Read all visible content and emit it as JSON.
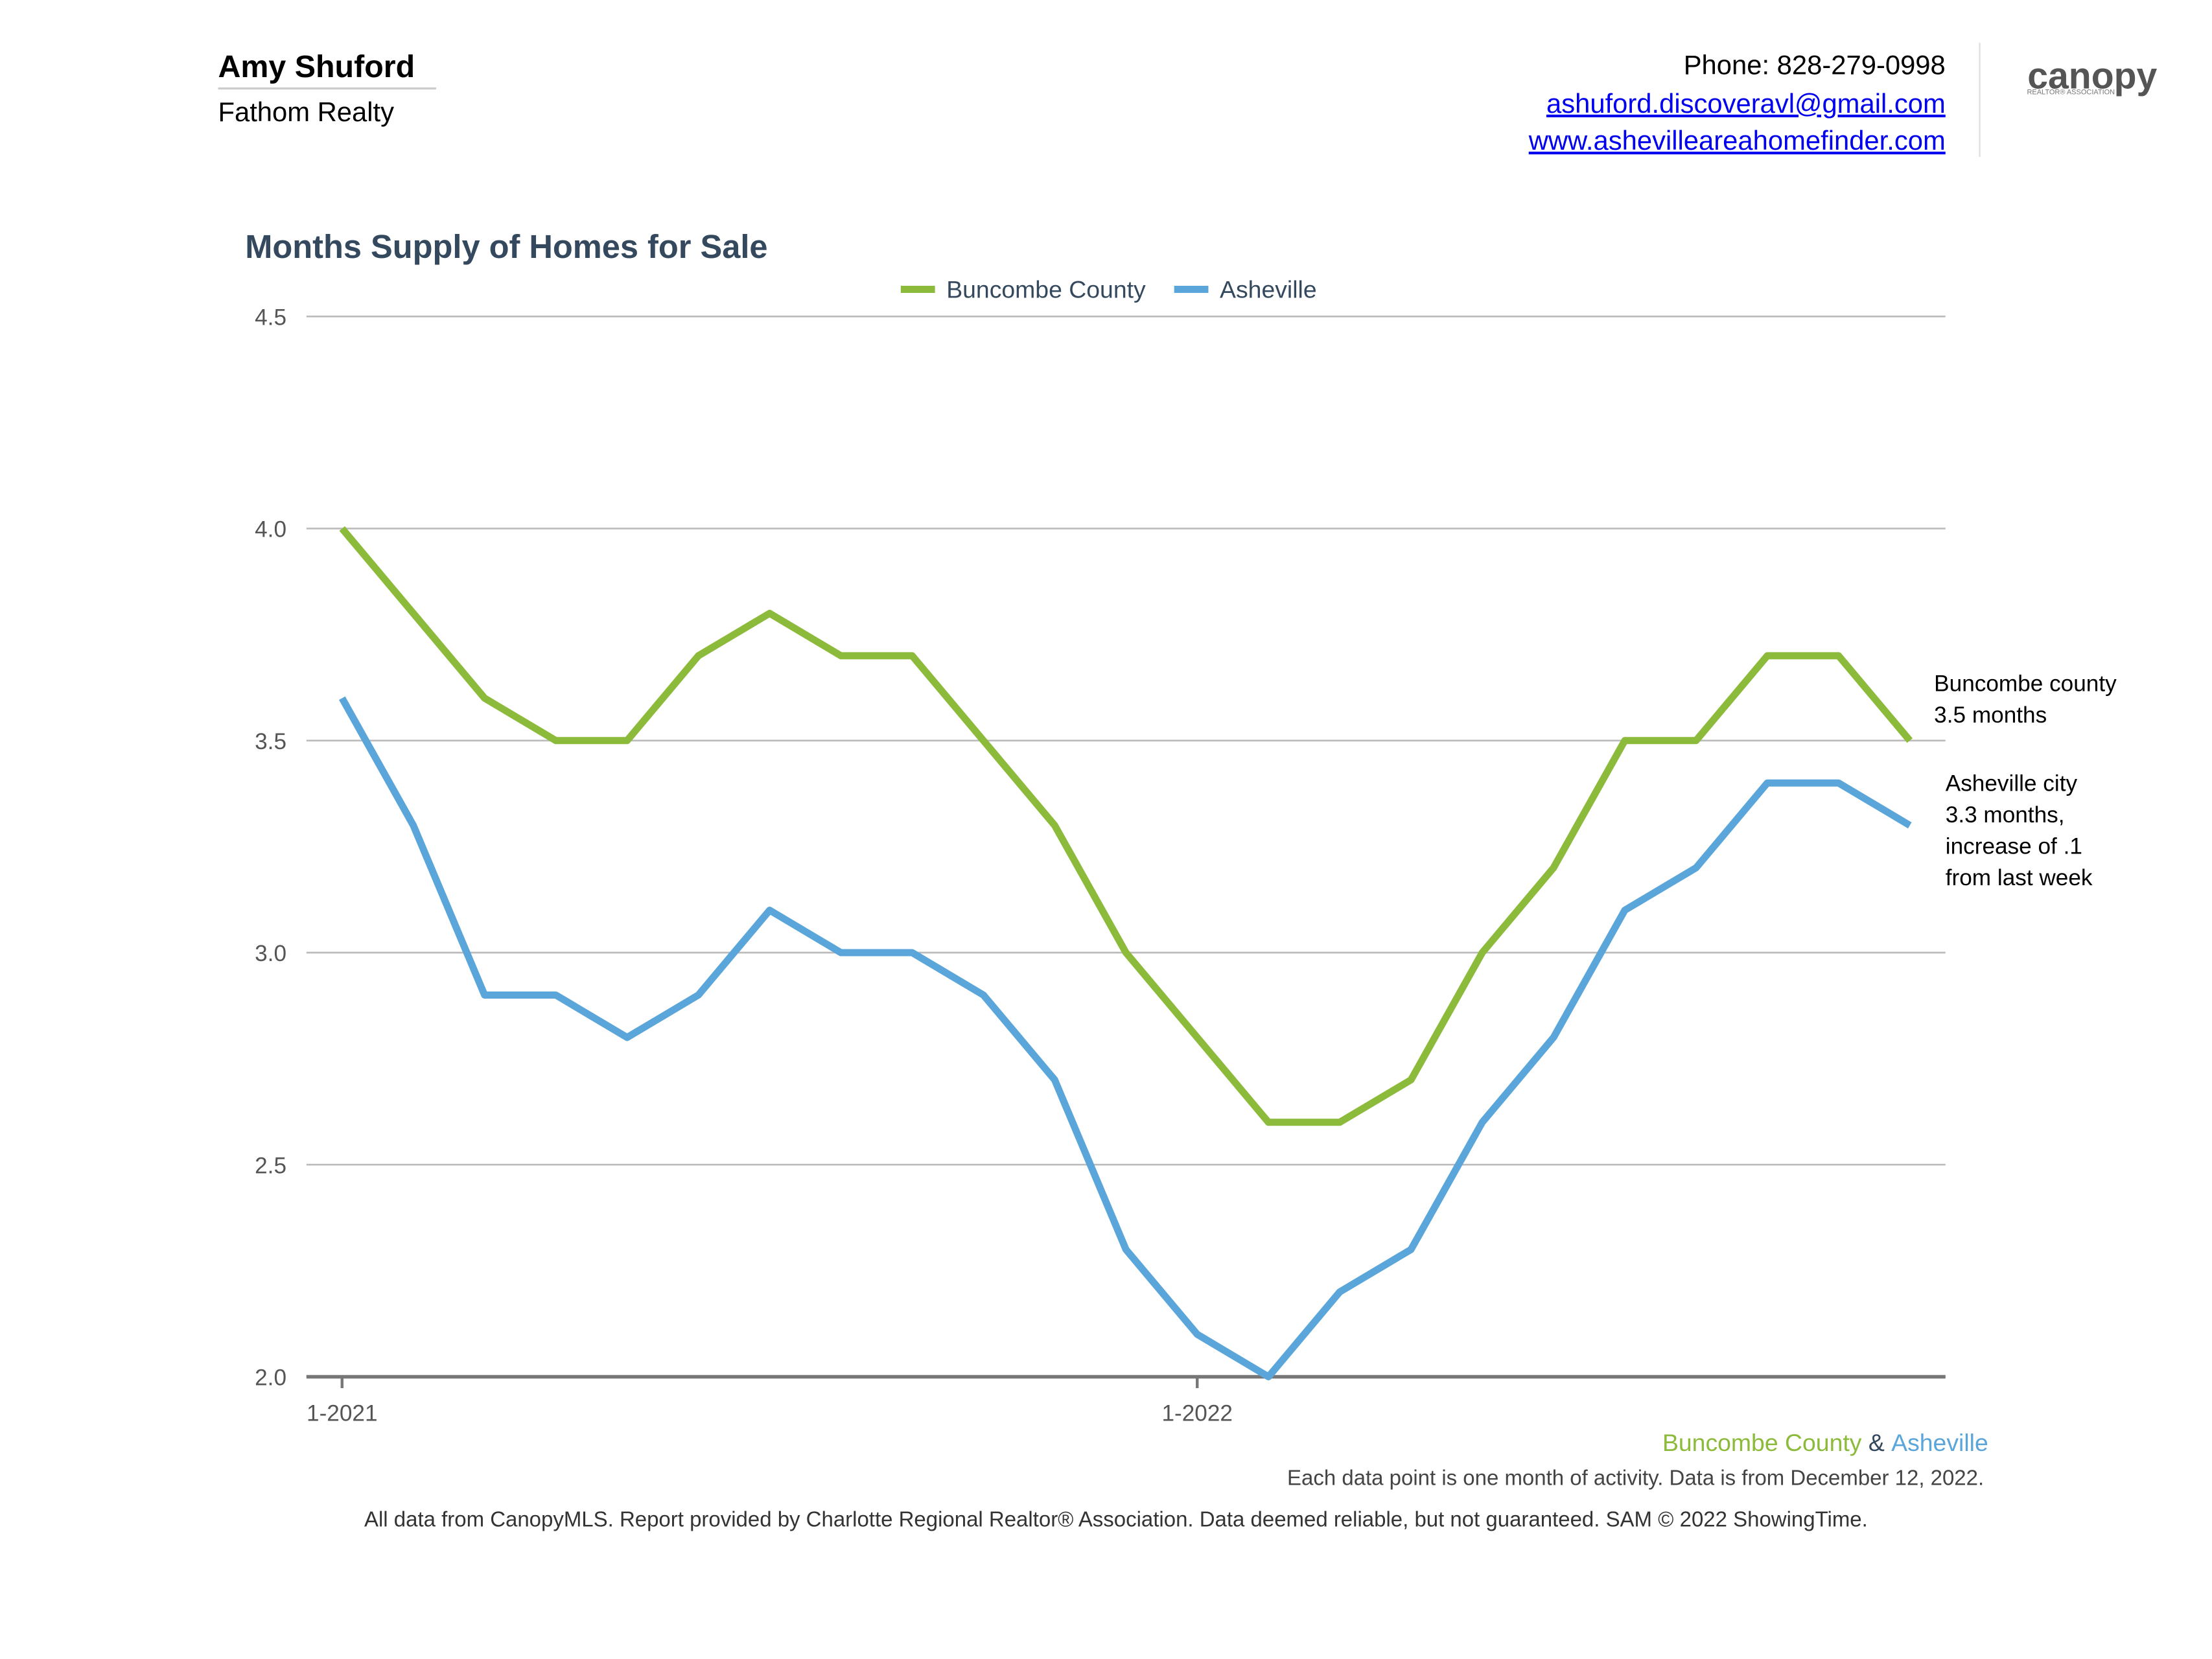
{
  "header": {
    "name": "Amy Shuford",
    "company": "Fathom Realty",
    "phone": "Phone: 828-279-0998",
    "email": "ashuford.discoveravl@gmail.com",
    "website": "www.ashevilleareahomefinder.com",
    "logo": "canopy",
    "logo_subtitle": "REALTOR® ASSOCIATION"
  },
  "chart_data": {
    "type": "line",
    "title": "Months Supply of Homes for Sale",
    "categories": [
      "1-2021",
      null,
      null,
      null,
      null,
      null,
      null,
      null,
      null,
      null,
      null,
      null,
      "1-2022",
      null,
      null,
      null,
      null,
      null,
      null,
      null,
      null,
      null,
      null
    ],
    "series": [
      {
        "name": "Buncombe County",
        "color": "#8cba3a",
        "values": [
          4.0,
          3.8,
          3.6,
          3.5,
          3.5,
          3.7,
          3.8,
          3.7,
          3.7,
          3.5,
          3.3,
          3.0,
          2.8,
          2.6,
          2.6,
          2.7,
          3.0,
          3.2,
          3.5,
          3.5,
          3.7,
          3.7,
          3.5
        ]
      },
      {
        "name": "Asheville",
        "color": "#5aa5d9",
        "values": [
          3.6,
          3.3,
          2.9,
          2.9,
          2.8,
          2.9,
          3.1,
          3.0,
          3.0,
          2.9,
          2.7,
          2.3,
          2.1,
          2.0,
          2.2,
          2.3,
          2.6,
          2.8,
          3.1,
          3.2,
          3.4,
          3.4,
          3.3
        ]
      }
    ],
    "ylim": [
      2.0,
      4.5
    ],
    "yticks": [
      {
        "value": 2.0,
        "label": "2.0"
      },
      2.5,
      {
        "value": 3.0,
        "label": "3.0"
      },
      3.5,
      {
        "value": 4.0,
        "label": "4.0"
      },
      4.5
    ],
    "grid": true,
    "legend": "top",
    "annotations": [
      [
        "Buncombe county",
        "3.5 months"
      ],
      [
        "Asheville city",
        "3.3 months,",
        "increase of .1",
        "from last week"
      ]
    ],
    "legend_joiner": "&"
  },
  "footer": {
    "note": "Each data point is one month of activity. Data is from December 12, 2022.",
    "disclaimer": "All data from CanopyMLS. Report provided by Charlotte Regional Realtor® Association. Data deemed reliable, but not guaranteed. SAM © 2022 ShowingTime."
  }
}
